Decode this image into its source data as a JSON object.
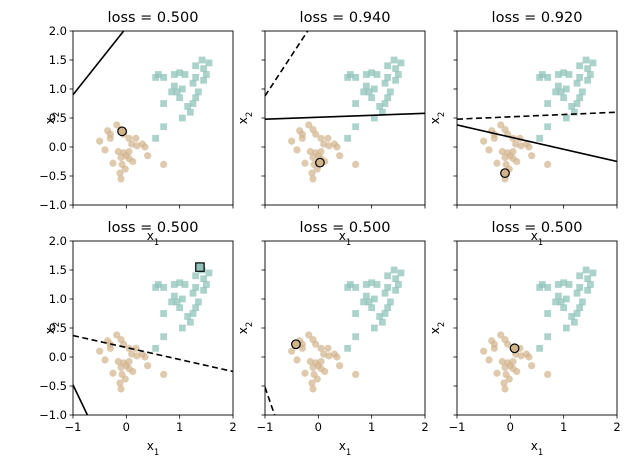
{
  "colors": {
    "class0": "#d2b48c",
    "class1": "#8fc3b9",
    "line": "#000000",
    "frame": "#000000"
  },
  "axis_labels": {
    "xlabel": "x",
    "xlabel_sub": "1",
    "ylabel": "x",
    "ylabel_sub": "2"
  },
  "chart_data": [
    {
      "type": "scatter",
      "title": "loss = 0.500",
      "xlim": [
        -1,
        2
      ],
      "ylim": [
        -1,
        2
      ],
      "xticks": [],
      "yticks": [
        "-1.0",
        "-0.5",
        "0.0",
        "0.5",
        "1.0",
        "1.5",
        "2.0"
      ],
      "lines": [
        {
          "style": "solid",
          "points": [
            [
              -1,
              0.9
            ],
            [
              -0.05,
              2.0
            ]
          ]
        }
      ],
      "highlight": {
        "x": -0.08,
        "y": 0.27,
        "marker": "circle"
      }
    },
    {
      "type": "scatter",
      "title": "loss = 0.940",
      "xlim": [
        -1,
        2
      ],
      "ylim": [
        -1,
        2
      ],
      "xticks": [],
      "yticks": [],
      "lines": [
        {
          "style": "dashed",
          "points": [
            [
              -1,
              0.88
            ],
            [
              -0.2,
              2.0
            ]
          ]
        },
        {
          "style": "solid",
          "points": [
            [
              -1,
              0.48
            ],
            [
              2,
              0.58
            ]
          ]
        }
      ],
      "highlight": {
        "x": 0.03,
        "y": -0.27,
        "marker": "circle"
      }
    },
    {
      "type": "scatter",
      "title": "loss = 0.920",
      "xlim": [
        -1,
        2
      ],
      "ylim": [
        -1,
        2
      ],
      "xticks": [],
      "yticks": [],
      "lines": [
        {
          "style": "dashed",
          "points": [
            [
              -1,
              0.48
            ],
            [
              2,
              0.6
            ]
          ]
        },
        {
          "style": "solid",
          "points": [
            [
              -1,
              0.38
            ],
            [
              2,
              -0.25
            ]
          ]
        }
      ],
      "highlight": {
        "x": -0.1,
        "y": -0.45,
        "marker": "circle"
      }
    },
    {
      "type": "scatter",
      "title": "loss = 0.500",
      "xlim": [
        -1,
        2
      ],
      "ylim": [
        -1,
        2
      ],
      "xticks": [
        "-1",
        "0",
        "1",
        "2"
      ],
      "yticks": [
        "-1.0",
        "-0.5",
        "0.0",
        "0.5",
        "1.0",
        "1.5",
        "2.0"
      ],
      "lines": [
        {
          "style": "dashed",
          "points": [
            [
              -1,
              0.37
            ],
            [
              2,
              -0.25
            ]
          ]
        },
        {
          "style": "solid",
          "points": [
            [
              -1,
              -0.48
            ],
            [
              -0.73,
              -1.0
            ]
          ]
        }
      ],
      "highlight": {
        "x": 1.38,
        "y": 1.55,
        "marker": "square"
      }
    },
    {
      "type": "scatter",
      "title": "loss = 0.500",
      "xlim": [
        -1,
        2
      ],
      "ylim": [
        -1,
        2
      ],
      "xticks": [
        "-1",
        "0",
        "1",
        "2"
      ],
      "yticks": [],
      "lines": [
        {
          "style": "dashed",
          "points": [
            [
              -1,
              -0.52
            ],
            [
              -0.82,
              -1.0
            ]
          ]
        }
      ],
      "highlight": {
        "x": -0.42,
        "y": 0.22,
        "marker": "circle"
      }
    },
    {
      "type": "scatter",
      "title": "loss = 0.500",
      "xlim": [
        -1,
        2
      ],
      "ylim": [
        -1,
        2
      ],
      "xticks": [
        "-1",
        "0",
        "1",
        "2"
      ],
      "yticks": [],
      "lines": [],
      "highlight": {
        "x": 0.08,
        "y": 0.15,
        "marker": "circle"
      }
    }
  ],
  "scatter_points": {
    "class0": [
      [
        -0.5,
        0.1
      ],
      [
        -0.35,
        0.28
      ],
      [
        -0.3,
        0.22
      ],
      [
        -0.18,
        0.38
      ],
      [
        -0.1,
        0.3
      ],
      [
        -0.05,
        0.22
      ],
      [
        0.05,
        0.15
      ],
      [
        0.1,
        0.05
      ],
      [
        0.2,
        0.02
      ],
      [
        0.3,
        0.05
      ],
      [
        0.35,
        0.0
      ],
      [
        -0.4,
        -0.05
      ],
      [
        -0.15,
        -0.08
      ],
      [
        -0.1,
        -0.18
      ],
      [
        -0.05,
        -0.1
      ],
      [
        0.0,
        -0.15
      ],
      [
        0.05,
        -0.2
      ],
      [
        0.12,
        -0.25
      ],
      [
        -0.25,
        -0.28
      ],
      [
        -0.08,
        -0.3
      ],
      [
        -0.02,
        -0.38
      ],
      [
        -0.12,
        -0.45
      ],
      [
        -0.1,
        -0.55
      ],
      [
        0.05,
        -0.08
      ],
      [
        0.4,
        -0.15
      ],
      [
        0.7,
        -0.3
      ],
      [
        0.18,
        0.15
      ],
      [
        -0.3,
        0.15
      ]
    ],
    "class1": [
      [
        0.6,
        1.25
      ],
      [
        0.55,
        1.2
      ],
      [
        0.7,
        1.2
      ],
      [
        0.9,
        1.25
      ],
      [
        1.0,
        1.28
      ],
      [
        1.1,
        1.25
      ],
      [
        1.3,
        1.4
      ],
      [
        1.45,
        1.35
      ],
      [
        1.5,
        1.25
      ],
      [
        1.42,
        1.5
      ],
      [
        1.55,
        1.45
      ],
      [
        1.45,
        1.15
      ],
      [
        1.35,
        0.95
      ],
      [
        1.3,
        0.85
      ],
      [
        1.25,
        0.75
      ],
      [
        1.2,
        0.6
      ],
      [
        1.05,
        1.0
      ],
      [
        0.95,
        0.95
      ],
      [
        0.9,
        1.05
      ],
      [
        0.85,
        0.95
      ],
      [
        1.0,
        0.85
      ],
      [
        1.15,
        0.7
      ],
      [
        1.05,
        0.5
      ],
      [
        0.7,
        0.75
      ],
      [
        0.7,
        0.35
      ],
      [
        0.55,
        0.15
      ],
      [
        1.3,
        1.2
      ],
      [
        1.25,
        1.1
      ]
    ]
  }
}
